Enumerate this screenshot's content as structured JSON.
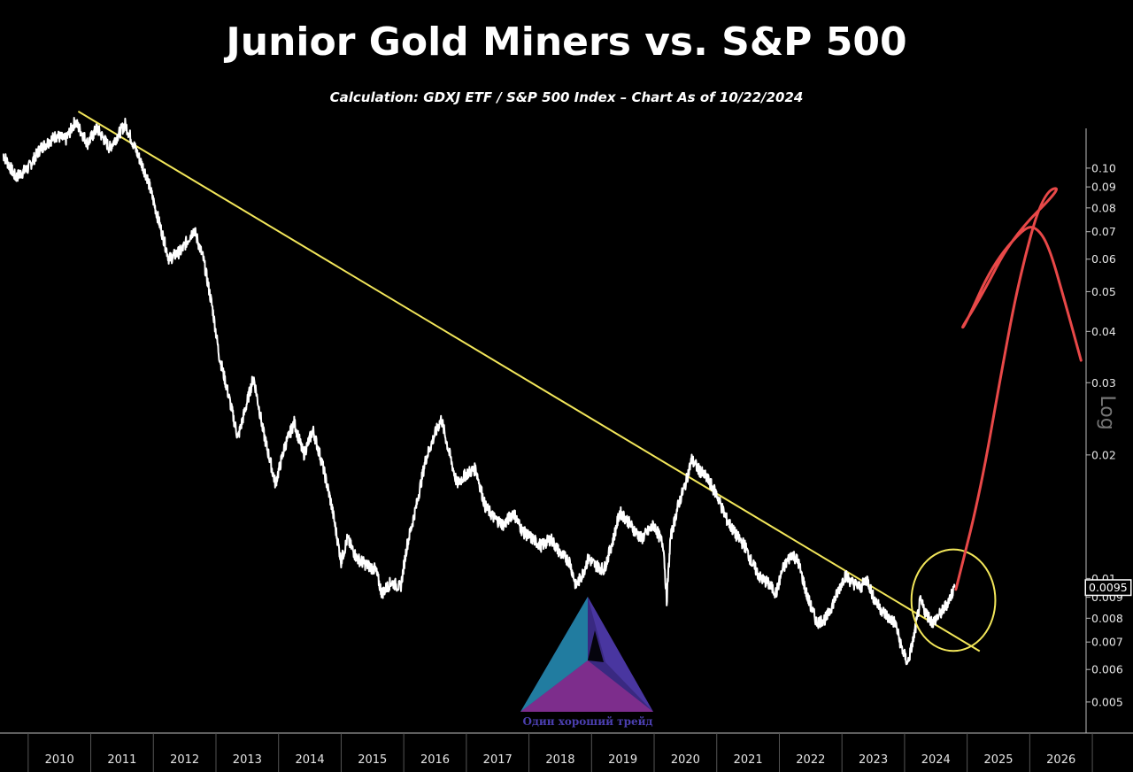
{
  "chart_data": {
    "type": "line",
    "title": "Junior Gold Miners vs. S&P 500",
    "subtitle": "Calculation: GDXJ ETF / S&P 500 Index – Chart As of 10/22/2024",
    "y_scale": "log",
    "y_scale_label": "Log",
    "ylim": [
      0.0042,
      0.125
    ],
    "xlim": [
      2009.55,
      2026.9
    ],
    "x_ticks": [
      "2010",
      "2011",
      "2012",
      "2013",
      "2014",
      "2015",
      "2016",
      "2017",
      "2018",
      "2019",
      "2020",
      "2021",
      "2022",
      "2023",
      "2024",
      "2025",
      "2026"
    ],
    "y_ticks": [
      {
        "value": 0.1,
        "label": "0.10"
      },
      {
        "value": 0.09,
        "label": "0.09"
      },
      {
        "value": 0.08,
        "label": "0.08"
      },
      {
        "value": 0.07,
        "label": "0.07"
      },
      {
        "value": 0.06,
        "label": "0.06"
      },
      {
        "value": 0.05,
        "label": "0.05"
      },
      {
        "value": 0.04,
        "label": "0.04"
      },
      {
        "value": 0.03,
        "label": "0.03"
      },
      {
        "value": 0.02,
        "label": "0.02"
      },
      {
        "value": 0.01,
        "label": "0.01"
      },
      {
        "value": 0.009,
        "label": "0.009"
      },
      {
        "value": 0.008,
        "label": "0.008"
      },
      {
        "value": 0.007,
        "label": "0.007"
      },
      {
        "value": 0.006,
        "label": "0.006"
      },
      {
        "value": 0.005,
        "label": "0.005"
      }
    ],
    "last_value_label": "0.0095",
    "last_value": 0.0095,
    "series": [
      {
        "color": "#ffffff",
        "points": [
          [
            2009.6,
            0.108
          ],
          [
            2009.8,
            0.095
          ],
          [
            2010.0,
            0.1
          ],
          [
            2010.2,
            0.112
          ],
          [
            2010.45,
            0.12
          ],
          [
            2010.6,
            0.117
          ],
          [
            2010.75,
            0.13
          ],
          [
            2010.95,
            0.115
          ],
          [
            2011.1,
            0.125
          ],
          [
            2011.3,
            0.112
          ],
          [
            2011.55,
            0.128
          ],
          [
            2011.75,
            0.108
          ],
          [
            2011.9,
            0.095
          ],
          [
            2012.05,
            0.078
          ],
          [
            2012.25,
            0.06
          ],
          [
            2012.45,
            0.063
          ],
          [
            2012.65,
            0.071
          ],
          [
            2012.8,
            0.06
          ],
          [
            2012.95,
            0.045
          ],
          [
            2013.05,
            0.035
          ],
          [
            2013.2,
            0.028
          ],
          [
            2013.35,
            0.022
          ],
          [
            2013.5,
            0.027
          ],
          [
            2013.6,
            0.031
          ],
          [
            2013.75,
            0.023
          ],
          [
            2013.95,
            0.017
          ],
          [
            2014.1,
            0.021
          ],
          [
            2014.25,
            0.024
          ],
          [
            2014.4,
            0.02
          ],
          [
            2014.55,
            0.023
          ],
          [
            2014.7,
            0.019
          ],
          [
            2014.85,
            0.015
          ],
          [
            2015.0,
            0.011
          ],
          [
            2015.1,
            0.0125
          ],
          [
            2015.25,
            0.0112
          ],
          [
            2015.4,
            0.0108
          ],
          [
            2015.55,
            0.0105
          ],
          [
            2015.65,
            0.0092
          ],
          [
            2015.8,
            0.0098
          ],
          [
            2015.95,
            0.0095
          ],
          [
            2016.05,
            0.012
          ],
          [
            2016.2,
            0.015
          ],
          [
            2016.35,
            0.0195
          ],
          [
            2016.5,
            0.0225
          ],
          [
            2016.6,
            0.0245
          ],
          [
            2016.7,
            0.021
          ],
          [
            2016.85,
            0.017
          ],
          [
            2017.0,
            0.018
          ],
          [
            2017.15,
            0.0185
          ],
          [
            2017.3,
            0.015
          ],
          [
            2017.45,
            0.014
          ],
          [
            2017.6,
            0.0135
          ],
          [
            2017.75,
            0.0145
          ],
          [
            2017.9,
            0.013
          ],
          [
            2018.05,
            0.0125
          ],
          [
            2018.2,
            0.012
          ],
          [
            2018.35,
            0.0125
          ],
          [
            2018.5,
            0.0115
          ],
          [
            2018.65,
            0.011
          ],
          [
            2018.75,
            0.0096
          ],
          [
            2018.85,
            0.0102
          ],
          [
            2018.95,
            0.0112
          ],
          [
            2019.05,
            0.0108
          ],
          [
            2019.2,
            0.0105
          ],
          [
            2019.35,
            0.0125
          ],
          [
            2019.45,
            0.0145
          ],
          [
            2019.55,
            0.014
          ],
          [
            2019.7,
            0.013
          ],
          [
            2019.8,
            0.0125
          ],
          [
            2019.9,
            0.013
          ],
          [
            2020.0,
            0.0135
          ],
          [
            2020.15,
            0.012
          ],
          [
            2020.2,
            0.0088
          ],
          [
            2020.26,
            0.0125
          ],
          [
            2020.38,
            0.015
          ],
          [
            2020.5,
            0.017
          ],
          [
            2020.6,
            0.0195
          ],
          [
            2020.7,
            0.0185
          ],
          [
            2020.85,
            0.0175
          ],
          [
            2021.0,
            0.016
          ],
          [
            2021.15,
            0.014
          ],
          [
            2021.3,
            0.0128
          ],
          [
            2021.45,
            0.012
          ],
          [
            2021.55,
            0.011
          ],
          [
            2021.7,
            0.01
          ],
          [
            2021.8,
            0.0098
          ],
          [
            2021.95,
            0.0092
          ],
          [
            2022.05,
            0.0105
          ],
          [
            2022.2,
            0.0115
          ],
          [
            2022.3,
            0.011
          ],
          [
            2022.45,
            0.009
          ],
          [
            2022.6,
            0.0078
          ],
          [
            2022.75,
            0.008
          ],
          [
            2022.9,
            0.009
          ],
          [
            2023.05,
            0.0102
          ],
          [
            2023.15,
            0.0098
          ],
          [
            2023.3,
            0.0095
          ],
          [
            2023.4,
            0.01
          ],
          [
            2023.5,
            0.009
          ],
          [
            2023.6,
            0.0085
          ],
          [
            2023.75,
            0.008
          ],
          [
            2023.85,
            0.0078
          ],
          [
            2023.95,
            0.0068
          ],
          [
            2024.05,
            0.0062
          ],
          [
            2024.15,
            0.0072
          ],
          [
            2024.25,
            0.0088
          ],
          [
            2024.35,
            0.0082
          ],
          [
            2024.45,
            0.0078
          ],
          [
            2024.6,
            0.0083
          ],
          [
            2024.7,
            0.0088
          ],
          [
            2024.8,
            0.0095
          ]
        ]
      }
    ],
    "annotations": [
      {
        "type": "trendline",
        "color": "#f2e65a",
        "from": [
          2010.8,
          0.1375
        ],
        "to": [
          2025.2,
          0.00665
        ]
      },
      {
        "type": "ellipse",
        "color": "#f2e65a",
        "center": [
          2024.78,
          0.00885
        ],
        "rx_years": 0.67,
        "ry_ratio": 1.21
      },
      {
        "type": "freehand-arrow",
        "color": "#e84848",
        "points": [
          [
            2024.82,
            0.0094
          ],
          [
            2025.2,
            0.016
          ],
          [
            2025.55,
            0.032
          ],
          [
            2025.82,
            0.053
          ],
          [
            2026.2,
            0.087
          ],
          [
            2026.55,
            0.091
          ],
          [
            2025.72,
            0.068
          ],
          [
            2025.22,
            0.0485
          ],
          [
            2024.9,
            0.0405
          ],
          [
            2024.97,
            0.0415
          ],
          [
            2025.4,
            0.058
          ],
          [
            2025.9,
            0.0715
          ],
          [
            2026.1,
            0.072
          ],
          [
            2026.3,
            0.065
          ],
          [
            2026.55,
            0.048
          ],
          [
            2026.82,
            0.034
          ]
        ]
      }
    ]
  },
  "watermark": {
    "caption": "Один хороший трейд"
  }
}
